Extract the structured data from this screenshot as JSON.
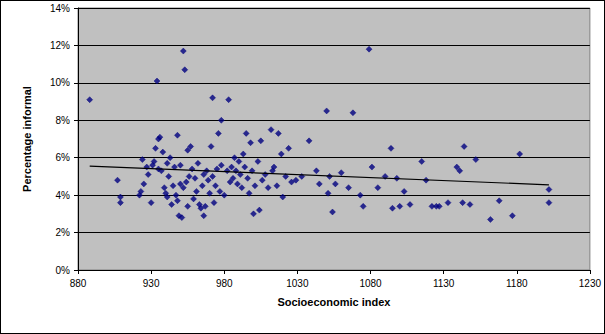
{
  "chart_data": {
    "type": "scatter",
    "xlabel": "Socioeconomic index",
    "ylabel": "Percentage informal",
    "xlim": [
      880,
      1230
    ],
    "xticks": [
      880,
      930,
      980,
      1030,
      1080,
      1130,
      1180,
      1230
    ],
    "ylim": [
      0,
      14
    ],
    "yticks": [
      {
        "value": 0,
        "label": "0%"
      },
      {
        "value": 2,
        "label": "2%"
      },
      {
        "value": 4,
        "label": "4%"
      },
      {
        "value": 6,
        "label": "6%"
      },
      {
        "value": 8,
        "label": "8%"
      },
      {
        "value": 10,
        "label": "10%"
      },
      {
        "value": 12,
        "label": "12%"
      },
      {
        "value": 14,
        "label": "14%"
      }
    ],
    "grid": "y",
    "series": [
      {
        "type": "scatter",
        "color": "#000080",
        "marker": "diamond",
        "x": [
          888,
          907,
          909,
          909,
          922,
          923,
          924,
          925,
          927,
          928,
          930,
          931,
          932,
          933,
          934,
          935,
          935,
          936,
          937,
          938,
          939,
          940,
          941,
          941,
          942,
          943,
          944,
          945,
          946,
          947,
          948,
          948,
          949,
          950,
          950,
          951,
          952,
          952,
          953,
          954,
          955,
          955,
          956,
          957,
          958,
          959,
          960,
          961,
          962,
          963,
          964,
          965,
          966,
          966,
          967,
          968,
          969,
          970,
          971,
          972,
          972,
          973,
          974,
          975,
          976,
          977,
          978,
          978,
          980,
          982,
          983,
          984,
          985,
          986,
          987,
          988,
          989,
          990,
          991,
          992,
          993,
          994,
          995,
          996,
          997,
          998,
          999,
          1000,
          1001,
          1003,
          1004,
          1005,
          1006,
          1008,
          1010,
          1012,
          1013,
          1014,
          1016,
          1017,
          1019,
          1020,
          1022,
          1024,
          1026,
          1029,
          1033,
          1038,
          1043,
          1045,
          1050,
          1051,
          1052,
          1054,
          1056,
          1060,
          1065,
          1068,
          1073,
          1075,
          1079,
          1081,
          1085,
          1090,
          1094,
          1095,
          1098,
          1100,
          1103,
          1107,
          1115,
          1118,
          1122,
          1125,
          1127,
          1133,
          1139,
          1141,
          1143,
          1144,
          1148,
          1152,
          1162,
          1168,
          1177,
          1182,
          1202,
          1202
        ],
        "values": [
          9.1,
          4.8,
          3.6,
          3.9,
          4.0,
          4.2,
          5.9,
          4.6,
          5.5,
          5.1,
          3.6,
          5.6,
          5.8,
          6.5,
          10.1,
          7.0,
          5.4,
          7.1,
          5.3,
          6.3,
          4.4,
          4.1,
          5.7,
          3.9,
          5.0,
          6.0,
          3.5,
          4.5,
          5.5,
          4.0,
          7.2,
          3.7,
          2.9,
          4.6,
          5.6,
          2.8,
          11.7,
          4.4,
          10.7,
          4.7,
          6.4,
          3.4,
          5.0,
          6.6,
          5.4,
          3.8,
          4.9,
          4.2,
          5.7,
          3.5,
          3.3,
          4.5,
          5.1,
          2.9,
          3.4,
          5.3,
          4.8,
          4.1,
          6.6,
          9.2,
          5.0,
          3.6,
          4.5,
          5.4,
          7.3,
          4.2,
          8.0,
          5.6,
          4.0,
          5.3,
          9.1,
          4.7,
          5.5,
          4.9,
          6.0,
          5.3,
          4.6,
          5.8,
          5.1,
          4.4,
          6.2,
          5.5,
          7.3,
          4.9,
          4.1,
          6.8,
          5.3,
          3.0,
          4.5,
          5.8,
          3.2,
          6.9,
          4.8,
          5.1,
          4.4,
          7.5,
          5.3,
          5.5,
          4.5,
          7.3,
          6.2,
          3.9,
          5.0,
          6.5,
          4.7,
          4.8,
          5.0,
          6.9,
          5.3,
          4.6,
          8.5,
          4.1,
          5.0,
          3.1,
          4.6,
          5.2,
          4.4,
          8.4,
          4.0,
          3.4,
          11.8,
          5.5,
          4.4,
          5.0,
          6.5,
          3.3,
          4.9,
          3.4,
          4.2,
          3.5,
          5.8,
          4.8,
          3.4,
          3.4,
          3.4,
          3.6,
          5.5,
          5.3,
          3.6,
          6.6,
          3.5,
          5.9,
          2.7,
          3.7,
          2.9,
          6.2,
          4.3,
          3.6
        ]
      },
      {
        "type": "line",
        "color": "#000000",
        "line_style": "solid",
        "x": [
          888,
          1202
        ],
        "values": [
          5.55,
          4.55
        ]
      }
    ]
  }
}
